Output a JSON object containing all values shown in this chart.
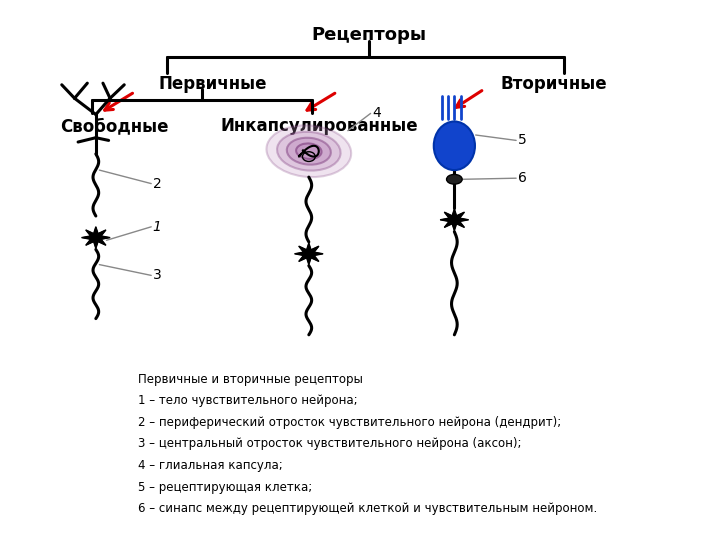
{
  "title": "Рецепторы",
  "label_primary": "Первичные",
  "label_secondary": "Вторичные",
  "label_free": "Свободные",
  "label_encapsulated": "Инкапсулированные",
  "description_title": "Первичные и вторичные рецепторы",
  "descriptions": [
    "1 – тело чувствительного нейрона;",
    "2 – периферический отросток чувствительного нейрона (дендрит);",
    "3 – центральный отросток чувствительного нейрона (аксон);",
    "4 – глиальная капсула;",
    "5 – рецептирующая клетка;",
    "6 – синапс между рецептирующей клеткой и чувствительным нейроном."
  ],
  "bg_color": "#ffffff",
  "black": "#000000",
  "red_arrow": "#dd0000",
  "purple_fill": "#c090c0",
  "purple_edge": "#804080",
  "blue_cell": "#1144cc",
  "gray_line": "#888888",
  "lw_main": 2.2,
  "lw_label": 1.0,
  "neuron_r": 12,
  "fig_w": 7.2,
  "fig_h": 5.4,
  "dpi": 100
}
